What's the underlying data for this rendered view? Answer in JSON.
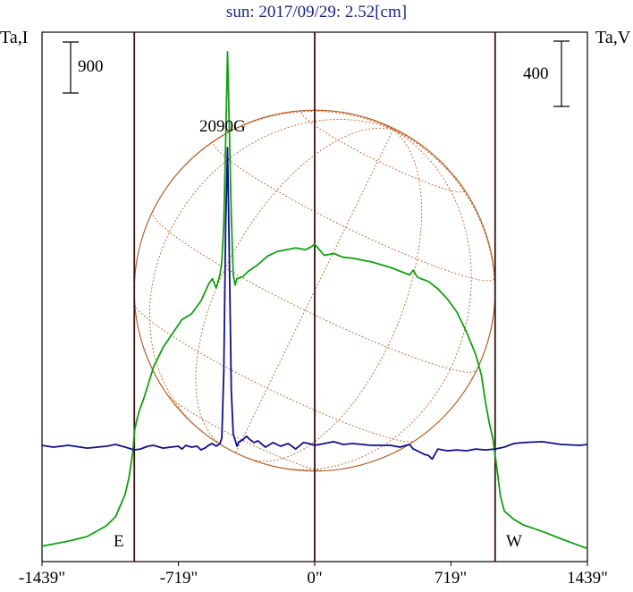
{
  "chart_data": {
    "type": "line",
    "title": "sun: 2017/09/29: 2.52[cm]",
    "x_ticks": [
      "-1439\"",
      "-719\"",
      "0\"",
      "719\"",
      "1439\""
    ],
    "x_tick_values": [
      -1439,
      -719,
      0,
      719,
      1439
    ],
    "xlim": [
      -1439,
      1439
    ],
    "left_axis_label": "Ta,I",
    "right_axis_label": "Ta,V",
    "left_scale_bar": "900",
    "right_scale_bar": "400",
    "limb_labels": {
      "east": "E",
      "west": "W"
    },
    "solar_limb_arcsec": 952,
    "grid": false,
    "annotations": [
      {
        "text": "2090G",
        "x": -460
      }
    ],
    "series": [
      {
        "name": "Ta,I",
        "color": "#12a012",
        "x": [
          -1439,
          -1300,
          -1200,
          -1100,
          -1050,
          -1000,
          -980,
          -960,
          -950,
          -940,
          -925,
          -900,
          -850,
          -800,
          -750,
          -700,
          -650,
          -600,
          -560,
          -540,
          -520,
          -500,
          -490,
          -480,
          -470,
          -460,
          -450,
          -440,
          -430,
          -420,
          -410,
          -380,
          -350,
          -300,
          -250,
          -200,
          -150,
          -100,
          -50,
          -20,
          0,
          50,
          100,
          150,
          200,
          300,
          400,
          500,
          520,
          540,
          560,
          600,
          650,
          700,
          750,
          800,
          850,
          880,
          900,
          920,
          940,
          960,
          980,
          1000,
          1050,
          1100,
          1200,
          1300,
          1380,
          1439
        ],
        "y": [
          40,
          95,
          145,
          260,
          360,
          600,
          780,
          1050,
          1290,
          1390,
          1500,
          1640,
          1970,
          2180,
          2330,
          2480,
          2540,
          2680,
          2860,
          2920,
          2820,
          2960,
          3100,
          3500,
          4400,
          5360,
          4500,
          3600,
          2960,
          2850,
          2920,
          2940,
          3000,
          3070,
          3160,
          3210,
          3230,
          3250,
          3230,
          3260,
          3290,
          3170,
          3190,
          3150,
          3140,
          3100,
          3040,
          2960,
          3010,
          2940,
          2920,
          2890,
          2810,
          2700,
          2560,
          2350,
          2100,
          1880,
          1600,
          1380,
          1200,
          900,
          580,
          420,
          330,
          270,
          200,
          120,
          60,
          15
        ]
      },
      {
        "name": "Ta,V",
        "color": "#10108a",
        "x": [
          -1439,
          -1380,
          -1300,
          -1200,
          -1100,
          -1050,
          -1000,
          -952,
          -920,
          -880,
          -850,
          -800,
          -760,
          -720,
          -700,
          -680,
          -650,
          -620,
          -600,
          -580,
          -560,
          -540,
          -520,
          -500,
          -490,
          -480,
          -470,
          -460,
          -450,
          -440,
          -430,
          -420,
          -410,
          -400,
          -380,
          -360,
          -340,
          -320,
          -300,
          -260,
          -220,
          -180,
          -140,
          -100,
          -60,
          -30,
          0,
          50,
          100,
          150,
          200,
          300,
          400,
          450,
          500,
          520,
          540,
          560,
          580,
          600,
          620,
          650,
          700,
          750,
          800,
          850,
          900,
          952,
          1000,
          1050,
          1100,
          1200,
          1300,
          1400,
          1439
        ],
        "y": [
          0,
          -10,
          0,
          -15,
          -5,
          5,
          -10,
          -25,
          -20,
          -5,
          0,
          -15,
          -10,
          -5,
          -20,
          0,
          -10,
          -5,
          -25,
          -15,
          0,
          10,
          -5,
          10,
          40,
          400,
          1200,
          1625,
          1000,
          300,
          60,
          30,
          -5,
          20,
          30,
          50,
          30,
          15,
          25,
          -10,
          15,
          -5,
          10,
          -20,
          15,
          10,
          0,
          10,
          20,
          5,
          10,
          0,
          0,
          -10,
          5,
          -20,
          -30,
          -40,
          -50,
          -55,
          -75,
          -20,
          -30,
          -25,
          -30,
          -20,
          -25,
          -20,
          -10,
          10,
          15,
          20,
          5,
          0,
          5
        ]
      }
    ]
  }
}
